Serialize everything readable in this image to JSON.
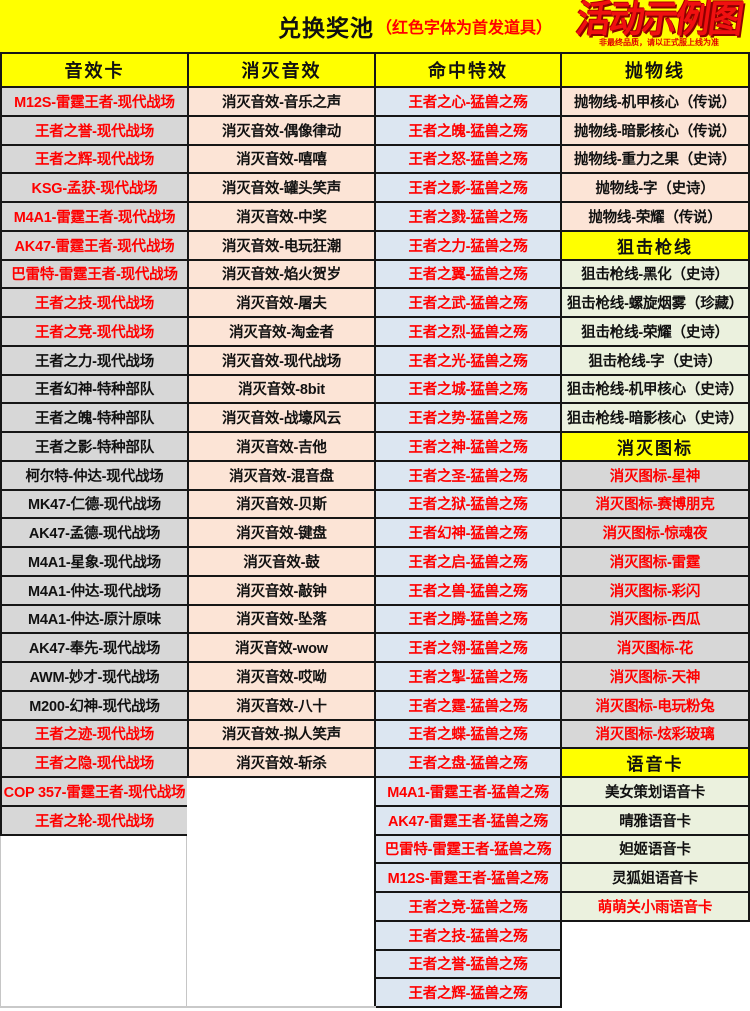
{
  "title": {
    "main": "兑换奖池",
    "note": "（红色字体为首发道具）"
  },
  "logo": {
    "text": "活动示例图",
    "subtext": "非最终品质，请以正式服上线为准"
  },
  "colors": {
    "band_yellow": "#ffff00",
    "red_text": "#ff0000",
    "black_text": "#111111",
    "themes": {
      "gray": "#d7d7d7",
      "pink": "#fce4d6",
      "blue": "#dce6f1",
      "green": "#ebf1de",
      "yellow": "#ffff00"
    }
  },
  "table": {
    "columns": [
      {
        "header": "音效卡",
        "bg": "gray",
        "c": "black",
        "cells": [
          {
            "t": "M12S-雷霆王者-现代战场",
            "c": "red"
          },
          {
            "t": "王者之誉-现代战场",
            "c": "red"
          },
          {
            "t": "王者之辉-现代战场",
            "c": "red"
          },
          {
            "t": "KSG-孟获-现代战场",
            "c": "red"
          },
          {
            "t": "M4A1-雷霆王者-现代战场",
            "c": "red"
          },
          {
            "t": "AK47-雷霆王者-现代战场",
            "c": "red"
          },
          {
            "t": "巴雷特-雷霆王者-现代战场",
            "c": "red"
          },
          {
            "t": "王者之技-现代战场",
            "c": "red"
          },
          {
            "t": "王者之竞-现代战场",
            "c": "red"
          },
          {
            "t": "王者之力-现代战场"
          },
          {
            "t": "王者幻神-特种部队"
          },
          {
            "t": "王者之魄-特种部队"
          },
          {
            "t": "王者之影-特种部队"
          },
          {
            "t": "柯尔特-仲达-现代战场"
          },
          {
            "t": "MK47-仁德-现代战场"
          },
          {
            "t": "AK47-孟德-现代战场"
          },
          {
            "t": "M4A1-星象-现代战场"
          },
          {
            "t": "M4A1-仲达-现代战场"
          },
          {
            "t": "M4A1-仲达-原汁原味"
          },
          {
            "t": "AK47-奉先-现代战场"
          },
          {
            "t": "AWM-妙才-现代战场"
          },
          {
            "t": "M200-幻神-现代战场"
          },
          {
            "t": "王者之迹-现代战场",
            "c": "red"
          },
          {
            "t": "王者之隐-现代战场",
            "c": "red"
          },
          {
            "t": "COP 357-雷霆王者-现代战场",
            "c": "red"
          },
          {
            "t": "王者之轮-现代战场",
            "c": "red"
          }
        ]
      },
      {
        "header": "消灭音效",
        "bg": "pink",
        "c": "black",
        "cells": [
          {
            "t": "消灭音效-音乐之声"
          },
          {
            "t": "消灭音效-偶像律动"
          },
          {
            "t": "消灭音效-嘻嘻"
          },
          {
            "t": "消灭音效-罐头笑声"
          },
          {
            "t": "消灭音效-中奖"
          },
          {
            "t": "消灭音效-电玩狂潮"
          },
          {
            "t": "消灭音效-焰火贺岁"
          },
          {
            "t": "消灭音效-屠夫"
          },
          {
            "t": "消灭音效-淘金者"
          },
          {
            "t": "消灭音效-现代战场"
          },
          {
            "t": "消灭音效-8bit"
          },
          {
            "t": "消灭音效-战壕风云"
          },
          {
            "t": "消灭音效-吉他"
          },
          {
            "t": "消灭音效-混音盘"
          },
          {
            "t": "消灭音效-贝斯"
          },
          {
            "t": "消灭音效-键盘"
          },
          {
            "t": "消灭音效-鼓"
          },
          {
            "t": "消灭音效-敲钟"
          },
          {
            "t": "消灭音效-坠落"
          },
          {
            "t": "消灭音效-wow"
          },
          {
            "t": "消灭音效-哎呦"
          },
          {
            "t": "消灭音效-八十"
          },
          {
            "t": "消灭音效-拟人笑声"
          },
          {
            "t": "消灭音效-斩杀"
          }
        ]
      },
      {
        "header": "命中特效",
        "bg": "blue",
        "c": "red",
        "cells": [
          {
            "t": "王者之心-猛兽之殇"
          },
          {
            "t": "王者之魄-猛兽之殇"
          },
          {
            "t": "王者之怒-猛兽之殇"
          },
          {
            "t": "王者之影-猛兽之殇"
          },
          {
            "t": "王者之戮-猛兽之殇"
          },
          {
            "t": "王者之力-猛兽之殇"
          },
          {
            "t": "王者之翼-猛兽之殇"
          },
          {
            "t": "王者之武-猛兽之殇"
          },
          {
            "t": "王者之烈-猛兽之殇"
          },
          {
            "t": "王者之光-猛兽之殇"
          },
          {
            "t": "王者之城-猛兽之殇"
          },
          {
            "t": "王者之势-猛兽之殇"
          },
          {
            "t": "王者之神-猛兽之殇"
          },
          {
            "t": "王者之圣-猛兽之殇"
          },
          {
            "t": "王者之狱-猛兽之殇"
          },
          {
            "t": "王者幻神-猛兽之殇"
          },
          {
            "t": "王者之启-猛兽之殇"
          },
          {
            "t": "王者之兽-猛兽之殇"
          },
          {
            "t": "王者之腾-猛兽之殇"
          },
          {
            "t": "王者之翎-猛兽之殇"
          },
          {
            "t": "王者之掣-猛兽之殇"
          },
          {
            "t": "王者之霆-猛兽之殇"
          },
          {
            "t": "王者之蝶-猛兽之殇"
          },
          {
            "t": "王者之盘-猛兽之殇"
          },
          {
            "t": "M4A1-雷霆王者-猛兽之殇"
          },
          {
            "t": "AK47-雷霆王者-猛兽之殇"
          },
          {
            "t": "巴雷特-雷霆王者-猛兽之殇"
          },
          {
            "t": "M12S-雷霆王者-猛兽之殇"
          },
          {
            "t": "王者之竞-猛兽之殇"
          },
          {
            "t": "王者之技-猛兽之殇"
          },
          {
            "t": "王者之誉-猛兽之殇"
          },
          {
            "t": "王者之辉-猛兽之殇"
          }
        ]
      },
      {
        "header": "抛物线",
        "bg": "pink",
        "c": "black",
        "cells": [
          {
            "t": "抛物线-机甲核心（传说）",
            "bg": "pink"
          },
          {
            "t": "抛物线-暗影核心（传说）",
            "bg": "pink"
          },
          {
            "t": "抛物线-重力之果（史诗）",
            "bg": "pink"
          },
          {
            "t": "抛物线-字（史诗）",
            "bg": "pink"
          },
          {
            "t": "抛物线-荣耀（传说）",
            "bg": "pink"
          },
          {
            "t": "狙击枪线",
            "bg": "yellow",
            "section": true
          },
          {
            "t": "狙击枪线-黑化（史诗）",
            "bg": "green"
          },
          {
            "t": "狙击枪线-螺旋烟雾（珍藏）",
            "bg": "green"
          },
          {
            "t": "狙击枪线-荣耀（史诗）",
            "bg": "green"
          },
          {
            "t": "狙击枪线-字（史诗）",
            "bg": "green"
          },
          {
            "t": "狙击枪线-机甲核心（史诗）",
            "bg": "green"
          },
          {
            "t": "狙击枪线-暗影核心（史诗）",
            "bg": "green"
          },
          {
            "t": "消灭图标",
            "bg": "yellow",
            "section": true
          },
          {
            "t": "消灭图标-星神",
            "bg": "gray",
            "c": "red"
          },
          {
            "t": "消灭图标-赛博朋克",
            "bg": "gray",
            "c": "red"
          },
          {
            "t": "消灭图标-惊魂夜",
            "bg": "gray",
            "c": "red"
          },
          {
            "t": "消灭图标-雷霆",
            "bg": "gray",
            "c": "red"
          },
          {
            "t": "消灭图标-彩闪",
            "bg": "gray",
            "c": "red"
          },
          {
            "t": "消灭图标-西瓜",
            "bg": "gray",
            "c": "red"
          },
          {
            "t": "消灭图标-花",
            "bg": "gray",
            "c": "red"
          },
          {
            "t": "消灭图标-天神",
            "bg": "gray",
            "c": "red"
          },
          {
            "t": "消灭图标-电玩粉兔",
            "bg": "gray",
            "c": "red"
          },
          {
            "t": "消灭图标-炫彩玻璃",
            "bg": "gray",
            "c": "red"
          },
          {
            "t": "语音卡",
            "bg": "yellow",
            "section": true
          },
          {
            "t": "美女策划语音卡",
            "bg": "green"
          },
          {
            "t": "晴雅语音卡",
            "bg": "green"
          },
          {
            "t": "妲姬语音卡",
            "bg": "green"
          },
          {
            "t": "灵狐姐语音卡",
            "bg": "green"
          },
          {
            "t": "萌萌关小雨语音卡",
            "bg": "green",
            "c": "red"
          }
        ]
      }
    ]
  }
}
